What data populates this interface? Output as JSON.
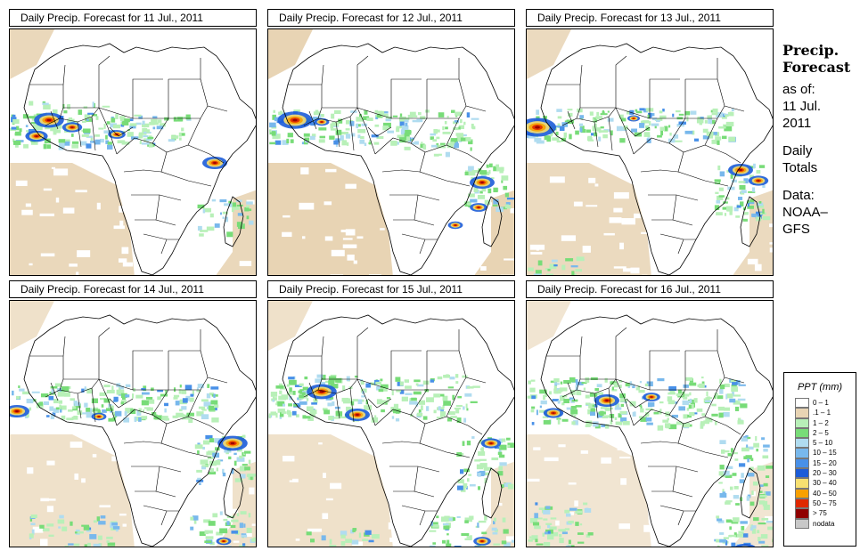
{
  "panels": [
    {
      "title": "Daily Precip. Forecast for  11 Jul., 2011"
    },
    {
      "title": "Daily Precip. Forecast for  12 Jul., 2011"
    },
    {
      "title": "Daily Precip. Forecast for  13 Jul., 2011"
    },
    {
      "title": "Daily Precip. Forecast for  14 Jul., 2011"
    },
    {
      "title": "Daily Precip. Forecast for  15 Jul., 2011"
    },
    {
      "title": "Daily Precip. Forecast for  16 Jul., 2011"
    }
  ],
  "side": {
    "title_line1": "Precip.",
    "title_line2": "Forecast",
    "asof_line1": "as of:",
    "asof_line2": "11 Jul.",
    "asof_line3": "2011",
    "totals_line1": "Daily",
    "totals_line2": "Totals",
    "data_line1": "Data:",
    "data_line2": "NOAA–",
    "data_line3": "GFS"
  },
  "legend": {
    "title": "PPT (mm)",
    "items": [
      {
        "label": "0 – 1",
        "color": "#ffffff"
      },
      {
        "label": ".1 – 1",
        "color": "#e8d4b4"
      },
      {
        "label": "1 – 2",
        "color": "#b8f0b8"
      },
      {
        "label": "2 – 5",
        "color": "#78dc78"
      },
      {
        "label": "5 – 10",
        "color": "#b0dcf0"
      },
      {
        "label": "10 – 15",
        "color": "#78b8ec"
      },
      {
        "label": "15 – 20",
        "color": "#4890e8"
      },
      {
        "label": "20 – 30",
        "color": "#1c5cd8"
      },
      {
        "label": "30 – 40",
        "color": "#f8e070"
      },
      {
        "label": "40 – 50",
        "color": "#f8a000"
      },
      {
        "label": "50 – 75",
        "color": "#e02800"
      },
      {
        "label": "> 75",
        "color": "#900000"
      },
      {
        "label": "nodata",
        "color": "#c8c8c8"
      }
    ]
  }
}
